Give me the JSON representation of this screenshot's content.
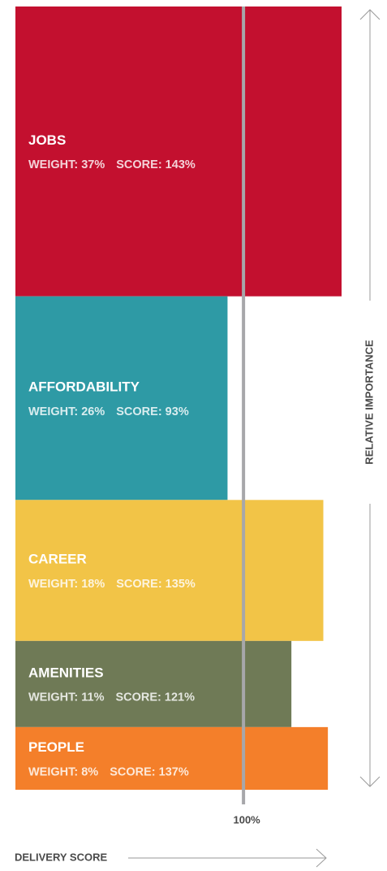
{
  "chart_data": {
    "type": "marimekko",
    "categories": [
      "JOBS",
      "AFFORDABILITY",
      "CAREER",
      "AMENITIES",
      "PEOPLE"
    ],
    "weights": [
      37,
      26,
      18,
      11,
      8
    ],
    "weight_labels": [
      "WEIGHT: 37%",
      "WEIGHT: 26%",
      "WEIGHT: 18%",
      "WEIGHT: 11%",
      "WEIGHT: 8%"
    ],
    "scores": [
      143,
      93,
      135,
      121,
      137
    ],
    "score_labels": [
      "SCORE: 143%",
      "SCORE: 93%",
      "SCORE: 135%",
      "SCORE: 121%",
      "SCORE: 137%"
    ],
    "colors": [
      "#c3102f",
      "#2e9aa5",
      "#f2c447",
      "#6f7a56",
      "#f47f2a"
    ],
    "xlim": [
      0,
      143
    ],
    "ylim": [
      0,
      100
    ],
    "reference": {
      "value": 100,
      "label": "100%"
    },
    "x_label": "DELIVERY SCORE",
    "y_label": "RELATIVE IMPORTANCE"
  }
}
